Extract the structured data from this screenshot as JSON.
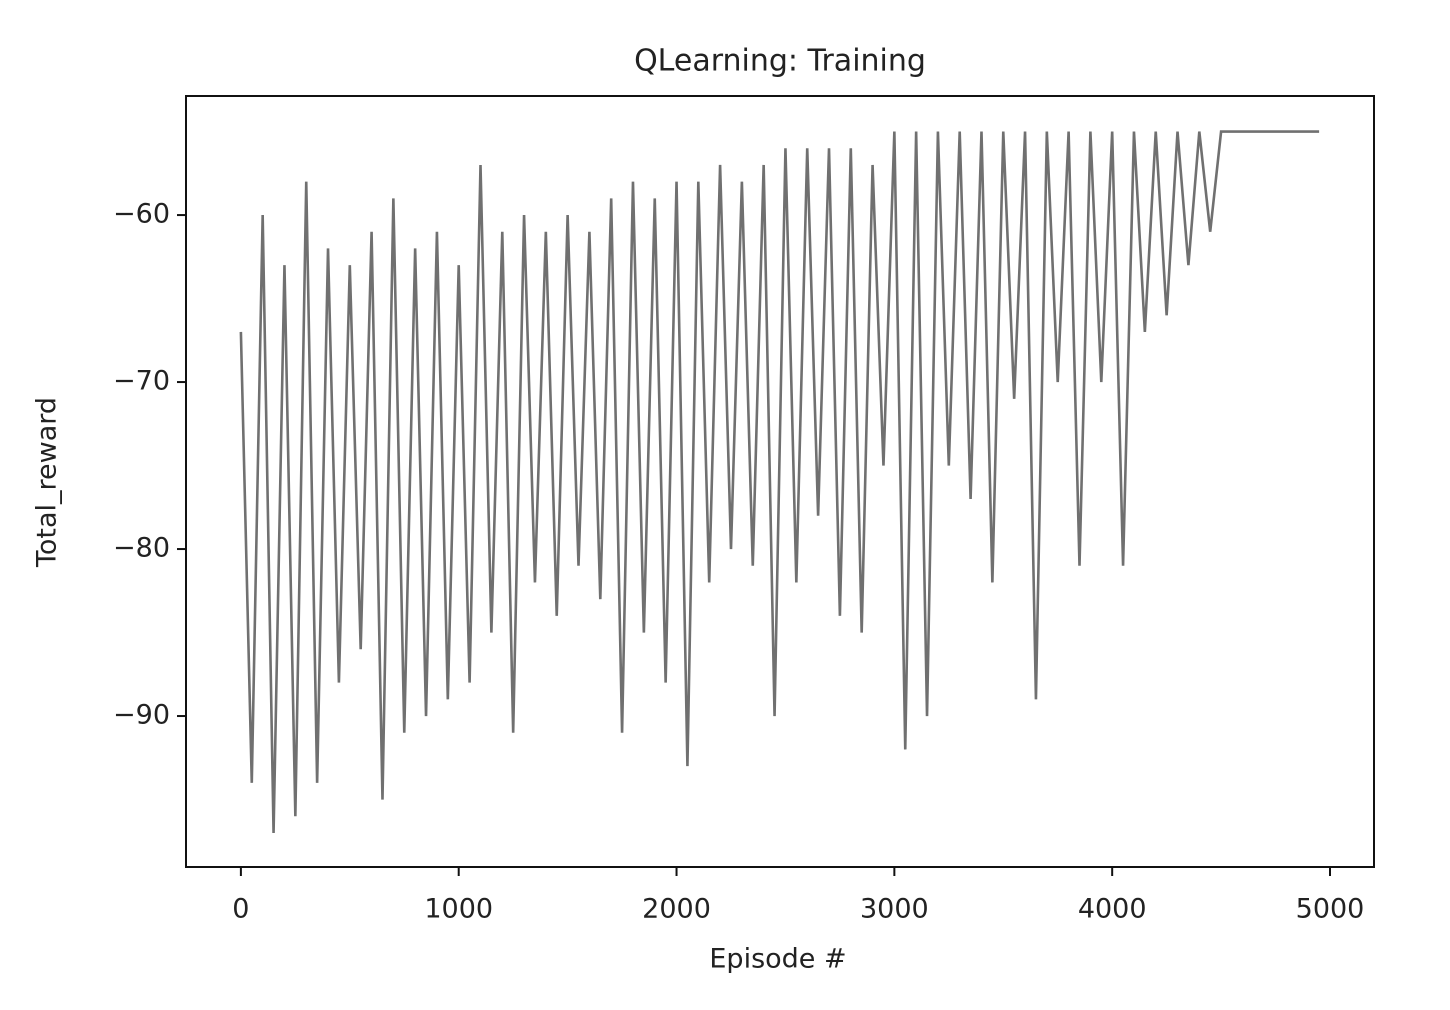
{
  "chart_data": {
    "type": "line",
    "title": "QLearning: Training",
    "x_label": "Episode #",
    "y_label": "Total_reward",
    "x": [
      0,
      50,
      100,
      150,
      200,
      250,
      300,
      350,
      400,
      450,
      500,
      550,
      600,
      650,
      700,
      750,
      800,
      850,
      900,
      950,
      1000,
      1050,
      1100,
      1150,
      1200,
      1250,
      1300,
      1350,
      1400,
      1450,
      1500,
      1550,
      1600,
      1650,
      1700,
      1750,
      1800,
      1850,
      1900,
      1950,
      2000,
      2050,
      2100,
      2150,
      2200,
      2250,
      2300,
      2350,
      2400,
      2450,
      2500,
      2550,
      2600,
      2650,
      2700,
      2750,
      2800,
      2850,
      2900,
      2950,
      3000,
      3050,
      3100,
      3150,
      3200,
      3250,
      3300,
      3350,
      3400,
      3450,
      3500,
      3550,
      3600,
      3650,
      3700,
      3750,
      3800,
      3850,
      3900,
      3950,
      4000,
      4050,
      4100,
      4150,
      4200,
      4250,
      4300,
      4350,
      4400,
      4450,
      4500,
      4550,
      4600,
      4650,
      4700,
      4750,
      4800,
      4850,
      4900,
      4950
    ],
    "series": [
      {
        "name": "Total_reward",
        "color": "#707070",
        "values": [
          -67,
          -94,
          -60,
          -97,
          -63,
          -96,
          -58,
          -94,
          -62,
          -88,
          -63,
          -86,
          -61,
          -95,
          -59,
          -91,
          -62,
          -90,
          -61,
          -89,
          -63,
          -88,
          -57,
          -85,
          -61,
          -91,
          -60,
          -82,
          -61,
          -84,
          -60,
          -81,
          -61,
          -83,
          -59,
          -91,
          -58,
          -85,
          -59,
          -88,
          -58,
          -93,
          -58,
          -82,
          -57,
          -80,
          -58,
          -81,
          -57,
          -90,
          -56,
          -82,
          -56,
          -78,
          -56,
          -84,
          -56,
          -85,
          -57,
          -75,
          -55,
          -92,
          -55,
          -90,
          -55,
          -75,
          -55,
          -77,
          -55,
          -82,
          -55,
          -71,
          -55,
          -89,
          -55,
          -70,
          -55,
          -81,
          -55,
          -70,
          -55,
          -81,
          -55,
          -67,
          -55,
          -66,
          -55,
          -63,
          -55,
          -61,
          -55,
          -55,
          -55,
          -55,
          -55,
          -55,
          -55,
          -55,
          -55,
          -55
        ]
      }
    ],
    "xlim": [
      -252,
      5202
    ],
    "ylim": [
      -99.04,
      -52.87
    ],
    "xticks": [
      0,
      1000,
      2000,
      3000,
      4000,
      5000
    ],
    "yticks": [
      {
        "value": -90,
        "label": "−90"
      },
      {
        "value": -80,
        "label": "−80"
      },
      {
        "value": -70,
        "label": "−70"
      },
      {
        "value": -60,
        "label": "−60"
      }
    ]
  }
}
